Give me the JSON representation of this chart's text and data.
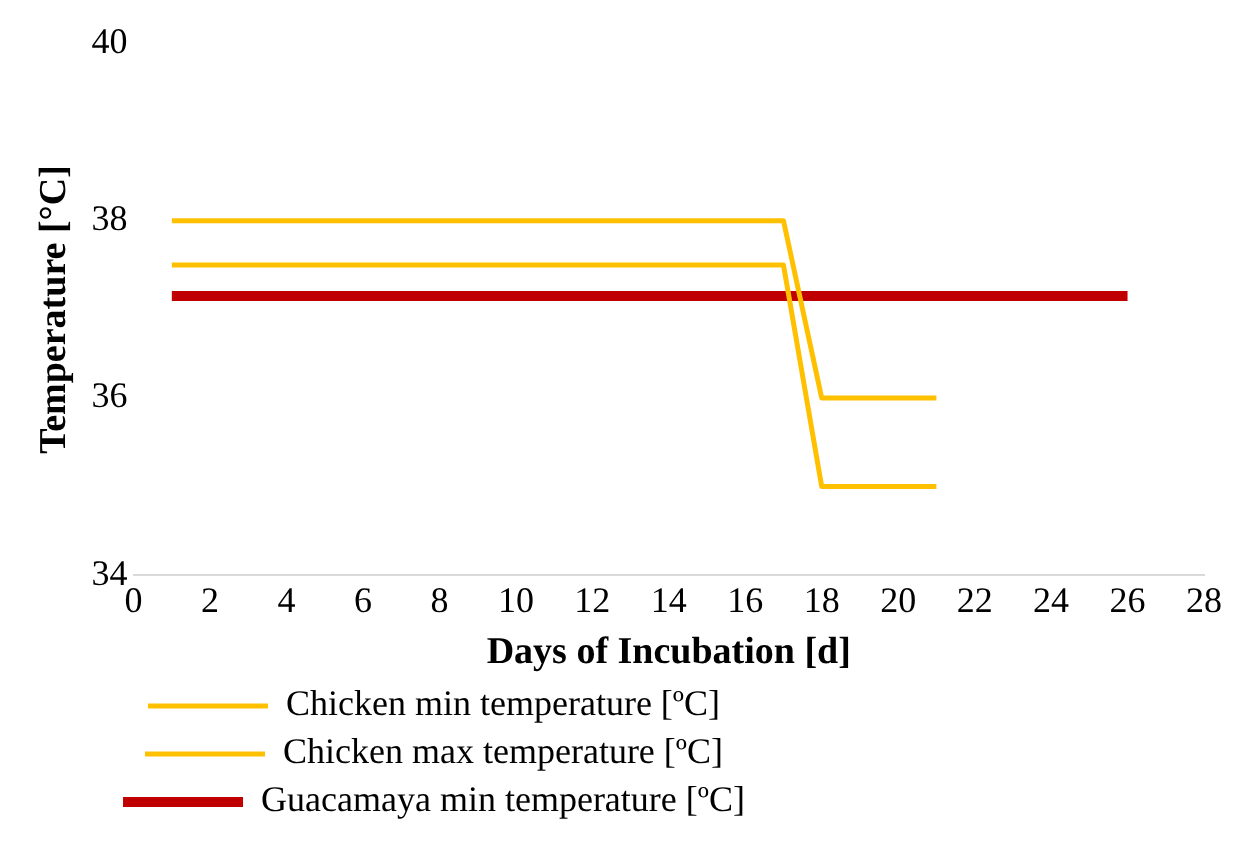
{
  "chart_data": {
    "type": "line",
    "xlabel": "Days of Incubation [d]",
    "ylabel": "Temperature [°C]",
    "xlim": [
      0,
      28
    ],
    "xticks": [
      0,
      2,
      4,
      6,
      8,
      10,
      12,
      14,
      16,
      18,
      20,
      22,
      24,
      26,
      28
    ],
    "ylim": [
      34,
      40
    ],
    "yticks": [
      34,
      36,
      38,
      40
    ],
    "grid": false,
    "legend": "bottom",
    "marker": "none",
    "line_style": "solid",
    "series": [
      {
        "name": "Chicken min temperature [ºC]",
        "color": "#ffc000",
        "x": [
          1,
          17,
          18,
          21
        ],
        "values": [
          37.5,
          37.5,
          35,
          35
        ]
      },
      {
        "name": "Chicken max temperature [ºC]",
        "color": "#ffc000",
        "x": [
          1,
          17,
          18,
          21
        ],
        "values": [
          38,
          38,
          36,
          36
        ]
      },
      {
        "name": "Guacamaya min temperature [ºC]",
        "color": "#c00000",
        "x": [
          1,
          26
        ],
        "values": [
          37.15,
          37.15
        ]
      }
    ]
  }
}
